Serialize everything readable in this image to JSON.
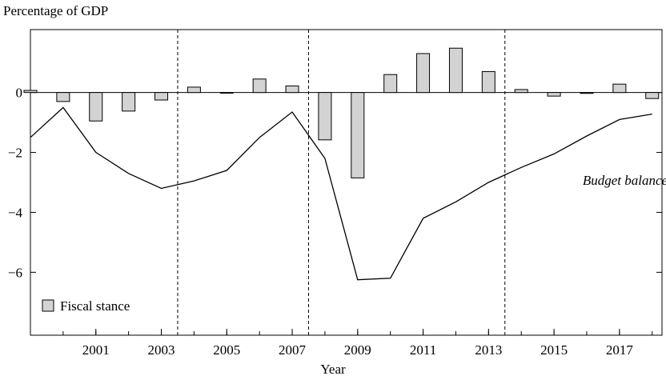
{
  "chart_data": {
    "type": "bar+line",
    "ylabel": "Percentage of GDP",
    "xlabel": "Year",
    "xlim": [
      1999,
      2018.3
    ],
    "ylim": [
      -8.1,
      2.1
    ],
    "y_ticks": [
      0,
      -2,
      -4,
      -6
    ],
    "y_tick_labels": [
      "0",
      "−2",
      "−4",
      "−6"
    ],
    "x_ticks": [
      2001,
      2003,
      2005,
      2007,
      2009,
      2011,
      2013,
      2015,
      2017
    ],
    "x_tick_labels": [
      "2001",
      "2003",
      "2005",
      "2007",
      "2009",
      "2011",
      "2013",
      "2015",
      "2017"
    ],
    "grid": false,
    "vertical_dashed_lines": [
      2003.5,
      2007.5,
      2013.5
    ],
    "bar_series": {
      "name": "Fiscal stance",
      "color": "#d3d3d3",
      "x": [
        1999,
        2000,
        2001,
        2002,
        2003,
        2004,
        2005,
        2006,
        2007,
        2008,
        2009,
        2010,
        2011,
        2012,
        2013,
        2014,
        2015,
        2016,
        2017,
        2018
      ],
      "values": [
        0.07,
        -0.3,
        -0.95,
        -0.62,
        -0.25,
        0.18,
        0.0,
        0.45,
        0.22,
        -1.58,
        -2.85,
        0.6,
        1.3,
        1.48,
        0.7,
        0.1,
        -0.12,
        -0.03,
        0.28,
        -0.2
      ]
    },
    "line_series": {
      "name": "Budget balance",
      "x": [
        1999,
        2000,
        2001,
        2002,
        2003,
        2004,
        2005,
        2006,
        2007,
        2008,
        2009,
        2010,
        2011,
        2012,
        2013,
        2014,
        2015,
        2016,
        2017,
        2018
      ],
      "values": [
        -1.5,
        -0.5,
        -2.0,
        -2.7,
        -3.2,
        -2.95,
        -2.6,
        -1.5,
        -0.65,
        -2.2,
        -6.25,
        -6.2,
        -4.2,
        -3.65,
        -3.0,
        -2.5,
        -2.05,
        -1.45,
        -0.9,
        -0.72
      ]
    },
    "legend": {
      "placement": "bottom-left",
      "label": "Fiscal stance"
    },
    "annotations": [
      {
        "text": "Budget balance",
        "x": 2017,
        "y": -2.95
      }
    ]
  }
}
